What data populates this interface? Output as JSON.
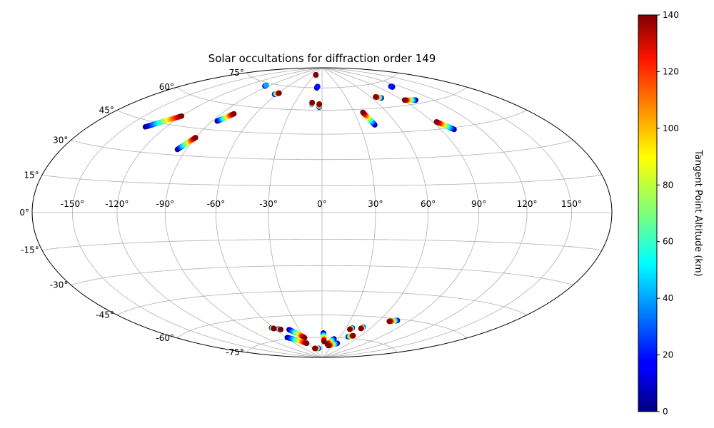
{
  "chart_data": {
    "type": "scatter",
    "projection": "hammer",
    "title": "Solar occultations for diffraction order 149",
    "grid": true,
    "lon_ticks": [
      -150,
      -120,
      -90,
      -60,
      -30,
      0,
      30,
      60,
      90,
      120,
      150
    ],
    "lat_ticks": [
      -75,
      -60,
      -45,
      -30,
      -15,
      0,
      15,
      30,
      45,
      60,
      75
    ],
    "tick_suffix": "°",
    "colorbar": {
      "label": "Tangent Point Altitude (km)",
      "range": [
        0,
        140
      ],
      "ticks": [
        0,
        20,
        40,
        60,
        80,
        100,
        120,
        140
      ],
      "colormap": "jet",
      "position": "right"
    },
    "tracks": [
      {
        "lon0": -136,
        "lat0": 42,
        "lon1": -120,
        "lat1": 50,
        "alt0": 0,
        "alt1": 140
      },
      {
        "lon0": -86,
        "lat0": 50,
        "lon1": -79,
        "lat1": 55,
        "alt0": 0,
        "alt1": 140
      },
      {
        "lon0": -96,
        "lat0": 33,
        "lon1": -90,
        "lat1": 40,
        "alt0": 0,
        "alt1": 140
      },
      {
        "lon0": -95,
        "lat0": 73,
        "lon1": -95,
        "lat1": 73.5,
        "alt0": 0,
        "alt1": 40
      },
      {
        "lon0": -63,
        "lat0": 69,
        "lon1": -59,
        "lat1": 70,
        "alt0": 0,
        "alt1": 140
      },
      {
        "lon0": -24,
        "lat0": 84,
        "lon1": -27,
        "lat1": 84.5,
        "alt0": 0,
        "alt1": 140
      },
      {
        "lon0": -9,
        "lat0": 75,
        "lon1": -8,
        "lat1": 76,
        "alt0": 0,
        "alt1": 20
      },
      {
        "lon0": -11,
        "lat0": 64,
        "lon1": -11,
        "lat1": 65,
        "alt0": 0,
        "alt1": 140
      },
      {
        "lon0": -3,
        "lat0": 62,
        "lon1": -3,
        "lat1": 64,
        "alt0": 0,
        "alt1": 140
      },
      {
        "lon0": 42,
        "lat0": 50,
        "lon1": 38,
        "lat1": 58,
        "alt0": 0,
        "alt1": 140
      },
      {
        "lon0": 71,
        "lat0": 66,
        "lon1": 66,
        "lat1": 67,
        "alt0": 0,
        "alt1": 140
      },
      {
        "lon0": 103,
        "lat0": 62,
        "lon1": 92,
        "lat1": 63,
        "alt0": 0,
        "alt1": 140
      },
      {
        "lon0": 100,
        "lat0": 44,
        "lon1": 93,
        "lat1": 49,
        "alt0": 0,
        "alt1": 140
      },
      {
        "lon0": 109,
        "lat0": 71,
        "lon1": 109,
        "lat1": 71.5,
        "alt0": 0,
        "alt1": 20
      },
      {
        "lon0": -62,
        "lat0": -67,
        "lon1": -60,
        "lat1": -67.5,
        "alt0": 0,
        "alt1": 140
      },
      {
        "lon0": -55,
        "lat0": -68,
        "lon1": -53,
        "lat1": -68.5,
        "alt0": 0,
        "alt1": 140
      },
      {
        "lon0": -43,
        "lat0": -69,
        "lon1": -30,
        "lat1": -75,
        "alt0": 0,
        "alt1": 140
      },
      {
        "lon0": -58,
        "lat0": -74,
        "lon1": -35,
        "lat1": -79,
        "alt0": 0,
        "alt1": 140
      },
      {
        "lon0": -12,
        "lat0": -83,
        "lon1": -25,
        "lat1": -83,
        "alt0": 0,
        "alt1": 140
      },
      {
        "lon0": 2,
        "lat0": -72,
        "lon1": 4,
        "lat1": -78,
        "alt0": 0,
        "alt1": 140
      },
      {
        "lon0": 22,
        "lat0": -76,
        "lon1": 13,
        "lat1": -80,
        "alt0": 0,
        "alt1": 140
      },
      {
        "lon0": 35,
        "lat0": -79,
        "lon1": 17,
        "lat1": -81,
        "alt0": 0,
        "alt1": 140
      },
      {
        "lon0": 38,
        "lat0": -68,
        "lon1": 36,
        "lat1": -69,
        "alt0": 0,
        "alt1": 140
      },
      {
        "lon0": 50,
        "lat0": -67,
        "lon1": 49,
        "lat1": -68,
        "alt0": 0,
        "alt1": 140
      },
      {
        "lon0": 43,
        "lat0": -74,
        "lon1": 49,
        "lat1": -73,
        "alt0": 0,
        "alt1": 140
      },
      {
        "lon0": 78,
        "lat0": -61,
        "lon1": 71,
        "lat1": -62,
        "alt0": 0,
        "alt1": 140
      }
    ]
  }
}
